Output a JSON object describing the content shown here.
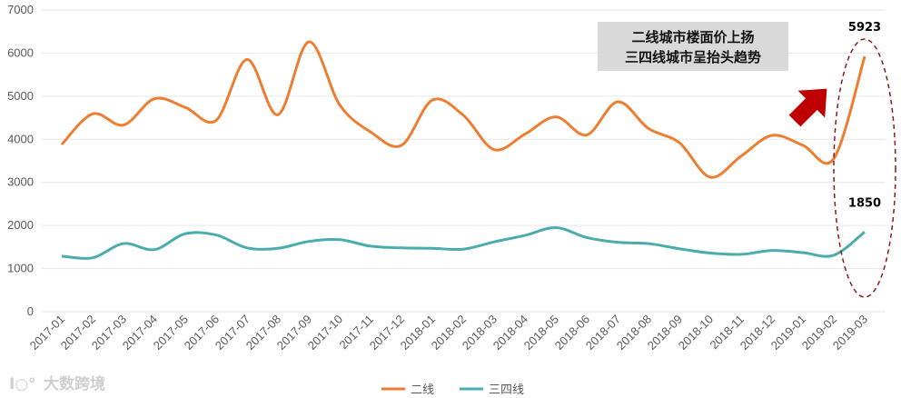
{
  "chart_data": {
    "type": "line",
    "categories": [
      "2017-01",
      "2017-02",
      "2017-03",
      "2017-04",
      "2017-05",
      "2017-06",
      "2017-07",
      "2017-08",
      "2017-09",
      "2017-10",
      "2017-11",
      "2017-12",
      "2018-01",
      "2018-02",
      "2018-03",
      "2018-04",
      "2018-05",
      "2018-06",
      "2018-07",
      "2018-08",
      "2018-09",
      "2018-10",
      "2018-11",
      "2018-12",
      "2019-01",
      "2019-02",
      "2019-03"
    ],
    "series": [
      {
        "name": "二线",
        "color": "#ed7d31",
        "values": [
          3880,
          4590,
          4330,
          4940,
          4740,
          4440,
          5850,
          4570,
          6260,
          4800,
          4170,
          3860,
          4910,
          4560,
          3760,
          4120,
          4520,
          4100,
          4870,
          4250,
          3920,
          3120,
          3610,
          4090,
          3860,
          3550,
          5923
        ]
      },
      {
        "name": "三四线",
        "color": "#4bacac",
        "values": [
          1290,
          1250,
          1580,
          1440,
          1810,
          1780,
          1480,
          1470,
          1630,
          1670,
          1520,
          1480,
          1470,
          1450,
          1620,
          1770,
          1950,
          1720,
          1610,
          1580,
          1460,
          1360,
          1330,
          1420,
          1370,
          1310,
          1850
        ]
      }
    ],
    "ylim": [
      0,
      7000
    ],
    "yticks": [
      0,
      1000,
      2000,
      3000,
      4000,
      5000,
      6000,
      7000
    ],
    "grid": true,
    "legend_position": "bottom",
    "data_labels": [
      {
        "series": 0,
        "index": 26,
        "text": "5923"
      },
      {
        "series": 1,
        "index": 26,
        "text": "1850"
      }
    ],
    "annotation": {
      "lines": [
        "二线城市楼面价上扬",
        "三四线城市呈抬头趋势"
      ]
    }
  },
  "watermark": {
    "text": "大数跨境"
  }
}
